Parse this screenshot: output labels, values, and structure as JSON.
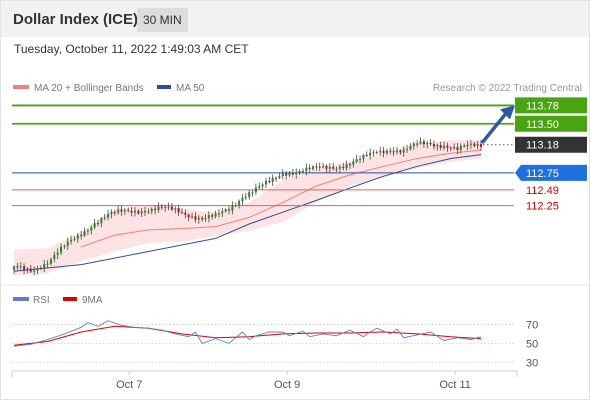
{
  "header": {
    "title": "Dollar Index (ICE)",
    "timeframe": "30 MIN",
    "datetime": "Tuesday, October 11, 2022 1:49:03 AM CET"
  },
  "legend": {
    "ma20_label": "MA 20 + Bollinger Bands",
    "ma50_label": "MA 50",
    "credit": "Research © 2022 Trading Central",
    "rsi_label": "RSI",
    "ma9_label": "9MA"
  },
  "colors": {
    "bullish": "#2a8a2a",
    "bearish": "#b01818",
    "ma20": "#f08080",
    "bollinger_fill": "#fde3e3",
    "ma50": "#2c4f9c",
    "resistance": "#4aa312",
    "pivot": "#2c4f9c",
    "support": "#e06060",
    "current_price": "#333333",
    "arrow": "#2d5aa0",
    "rsi": "#5b7fd6",
    "rsi_ma": "#e00000"
  },
  "chart_data": [
    {
      "type": "candlestick",
      "y_unit": "index points",
      "y_range": [
        111.1,
        114.0
      ],
      "x_ticks": [
        "Oct 7",
        "Oct 9",
        "Oct 11"
      ],
      "levels": [
        {
          "value": 113.78,
          "label": "113.78",
          "kind": "resistance"
        },
        {
          "value": 113.5,
          "label": "113.50",
          "kind": "resistance"
        },
        {
          "value": 113.18,
          "label": "113.18",
          "kind": "current"
        },
        {
          "value": 112.75,
          "label": "112.75",
          "kind": "pivot"
        },
        {
          "value": 112.49,
          "label": "112.49",
          "kind": "support"
        },
        {
          "value": 112.25,
          "label": "112.25",
          "kind": "support"
        }
      ],
      "close_path": [
        [
          0,
          111.29
        ],
        [
          5,
          111.26
        ],
        [
          10,
          111.4
        ],
        [
          15,
          111.62
        ],
        [
          20,
          111.82
        ],
        [
          24,
          112.0
        ],
        [
          28,
          112.1
        ],
        [
          32,
          112.15
        ],
        [
          36,
          112.18
        ],
        [
          40,
          112.19
        ],
        [
          44,
          112.2
        ],
        [
          48,
          112.18
        ],
        [
          52,
          112.12
        ],
        [
          56,
          112.05
        ],
        [
          60,
          112.08
        ],
        [
          64,
          112.2
        ],
        [
          68,
          112.4
        ],
        [
          72,
          112.5
        ],
        [
          76,
          112.6
        ],
        [
          80,
          112.75
        ],
        [
          84,
          112.78
        ],
        [
          88,
          112.8
        ],
        [
          92,
          112.82
        ],
        [
          96,
          112.85
        ],
        [
          100,
          112.9
        ],
        [
          104,
          112.97
        ],
        [
          108,
          113.07
        ],
        [
          112,
          113.12
        ],
        [
          116,
          113.08
        ],
        [
          120,
          113.18
        ],
        [
          124,
          113.2
        ],
        [
          128,
          113.18
        ],
        [
          132,
          113.1
        ],
        [
          136,
          113.16
        ],
        [
          139,
          113.18
        ]
      ],
      "indicators": {
        "ma20": [
          [
            20,
            111.62
          ],
          [
            30,
            111.8
          ],
          [
            40,
            111.88
          ],
          [
            50,
            111.9
          ],
          [
            60,
            111.93
          ],
          [
            70,
            112.07
          ],
          [
            80,
            112.3
          ],
          [
            90,
            112.55
          ],
          [
            100,
            112.72
          ],
          [
            110,
            112.85
          ],
          [
            120,
            112.97
          ],
          [
            130,
            113.05
          ],
          [
            139,
            113.1
          ]
        ],
        "bollinger_upper": [
          [
            0,
            111.58
          ],
          [
            10,
            111.6
          ],
          [
            20,
            111.85
          ],
          [
            30,
            112.2
          ],
          [
            40,
            112.25
          ],
          [
            50,
            112.2
          ],
          [
            60,
            112.15
          ],
          [
            70,
            112.3
          ],
          [
            80,
            112.63
          ],
          [
            90,
            112.8
          ],
          [
            100,
            112.92
          ],
          [
            110,
            113.05
          ],
          [
            120,
            113.2
          ],
          [
            130,
            113.25
          ],
          [
            139,
            113.25
          ]
        ],
        "bollinger_lower": [
          [
            0,
            111.18
          ],
          [
            10,
            111.22
          ],
          [
            20,
            111.4
          ],
          [
            30,
            111.55
          ],
          [
            40,
            111.68
          ],
          [
            50,
            111.7
          ],
          [
            60,
            111.78
          ],
          [
            70,
            111.87
          ],
          [
            80,
            112.0
          ],
          [
            90,
            112.3
          ],
          [
            100,
            112.55
          ],
          [
            110,
            112.68
          ],
          [
            120,
            112.82
          ],
          [
            130,
            112.92
          ],
          [
            139,
            112.97
          ]
        ],
        "ma50": [
          [
            0,
            111.25
          ],
          [
            20,
            111.35
          ],
          [
            40,
            111.55
          ],
          [
            60,
            111.75
          ],
          [
            70,
            111.97
          ],
          [
            80,
            112.15
          ],
          [
            90,
            112.33
          ],
          [
            100,
            112.52
          ],
          [
            110,
            112.7
          ],
          [
            120,
            112.85
          ],
          [
            130,
            112.97
          ],
          [
            139,
            113.03
          ]
        ]
      },
      "forecast_arrow": {
        "from": 113.18,
        "to": 113.78
      }
    },
    {
      "type": "line",
      "name": "RSI",
      "y_range": [
        25,
        80
      ],
      "y_ticks": [
        70,
        50,
        30
      ],
      "series": [
        {
          "name": "RSI",
          "values": [
            [
              0,
              47
            ],
            [
              5,
              49
            ],
            [
              10,
              54
            ],
            [
              15,
              60
            ],
            [
              20,
              67
            ],
            [
              22,
              72
            ],
            [
              25,
              68
            ],
            [
              28,
              74
            ],
            [
              32,
              69
            ],
            [
              36,
              67
            ],
            [
              40,
              66
            ],
            [
              44,
              64
            ],
            [
              48,
              60
            ],
            [
              52,
              57
            ],
            [
              54,
              62
            ],
            [
              56,
              50
            ],
            [
              60,
              55
            ],
            [
              64,
              50
            ],
            [
              68,
              62
            ],
            [
              70,
              54
            ],
            [
              72,
              58
            ],
            [
              76,
              62
            ],
            [
              80,
              62
            ],
            [
              82,
              58
            ],
            [
              86,
              63
            ],
            [
              88,
              57
            ],
            [
              92,
              60
            ],
            [
              96,
              58
            ],
            [
              100,
              64
            ],
            [
              104,
              57
            ],
            [
              106,
              62
            ],
            [
              108,
              66
            ],
            [
              112,
              60
            ],
            [
              114,
              65
            ],
            [
              116,
              56
            ],
            [
              120,
              59
            ],
            [
              124,
              62
            ],
            [
              128,
              53
            ],
            [
              132,
              56
            ],
            [
              136,
              54
            ],
            [
              139,
              57
            ]
          ]
        },
        {
          "name": "9MA",
          "values": [
            [
              0,
              48
            ],
            [
              10,
              52
            ],
            [
              20,
              62
            ],
            [
              30,
              68
            ],
            [
              40,
              66
            ],
            [
              50,
              60
            ],
            [
              60,
              56
            ],
            [
              70,
              57
            ],
            [
              80,
              60
            ],
            [
              90,
              61
            ],
            [
              100,
              61
            ],
            [
              110,
              62
            ],
            [
              120,
              60
            ],
            [
              130,
              57
            ],
            [
              139,
              55
            ]
          ]
        }
      ]
    }
  ]
}
